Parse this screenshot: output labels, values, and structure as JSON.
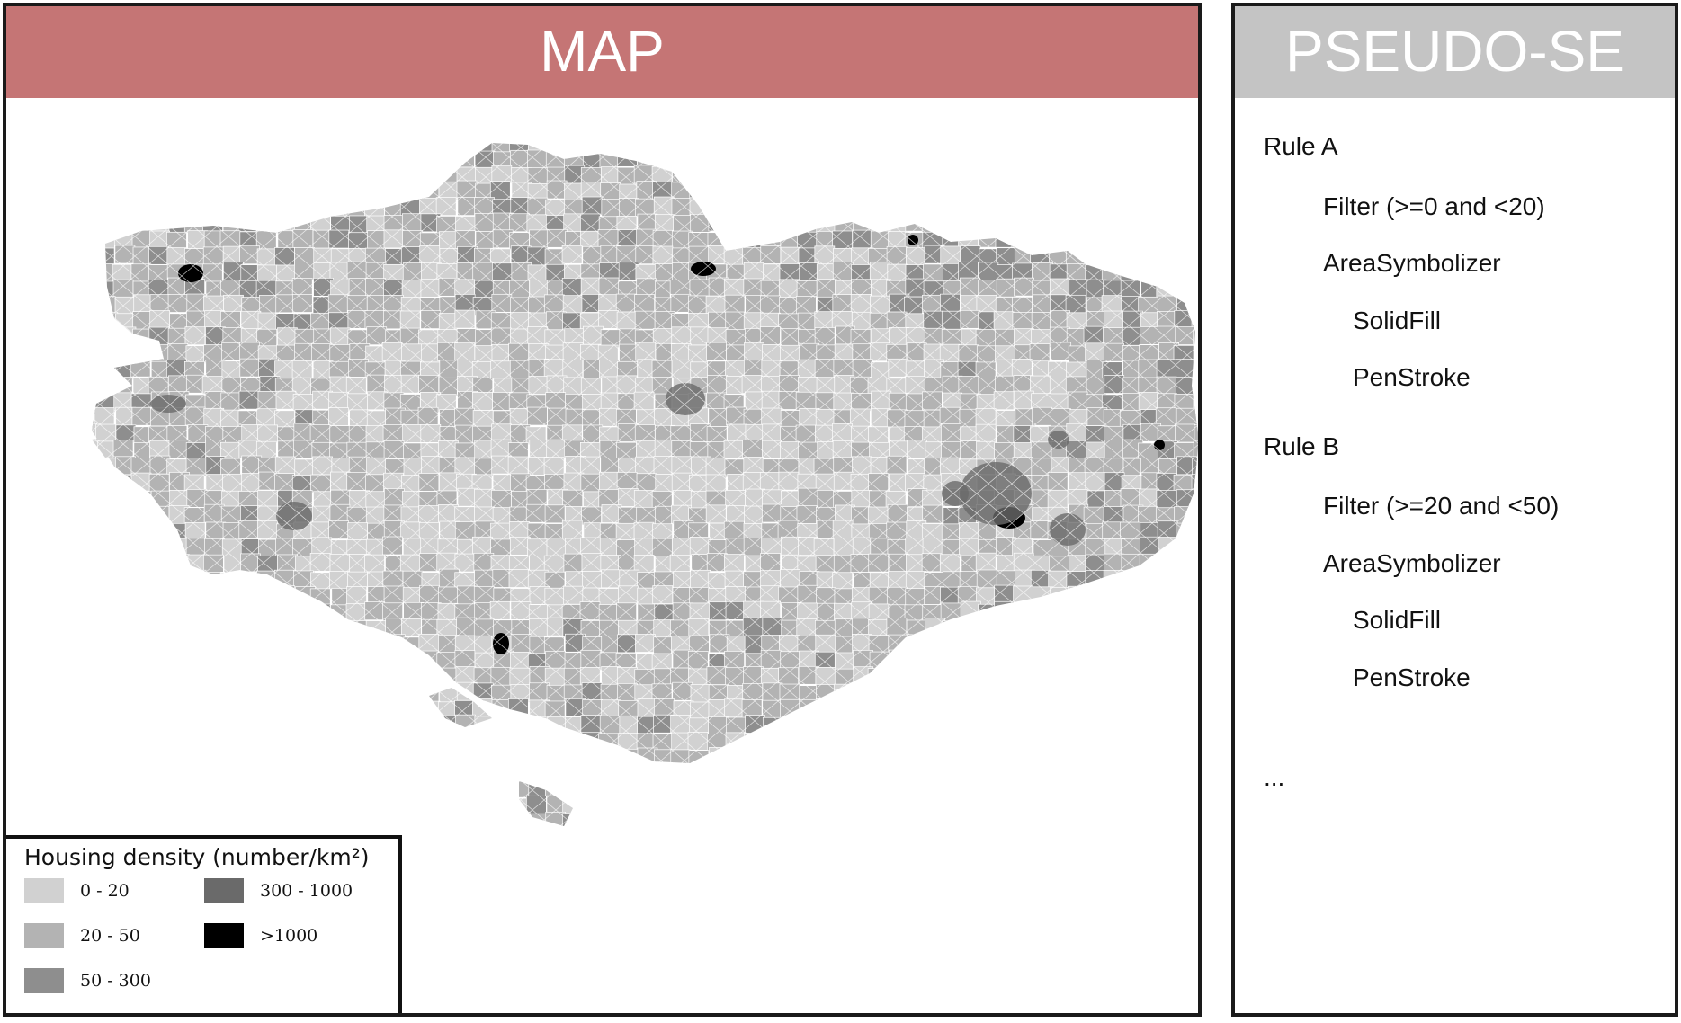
{
  "map_panel": {
    "title": "MAP"
  },
  "legend": {
    "title": "Housing density (number/km²)",
    "items": [
      {
        "label": "0 - 20",
        "color": "#d1d1d1"
      },
      {
        "label": "20 - 50",
        "color": "#b3b3b3"
      },
      {
        "label": "50 - 300",
        "color": "#8e8e8e"
      },
      {
        "label": "300 - 1000",
        "color": "#6a6a6a"
      },
      {
        "label": ">1000",
        "color": "#000000"
      }
    ]
  },
  "se_panel": {
    "title": "PSEUDO-SE",
    "lines": [
      "Rule A",
      "Filter (>=0 and <20)",
      "AreaSymbolizer",
      "SolidFill",
      "PenStroke",
      "Rule B",
      "Filter (>=20 and <50)",
      "AreaSymbolizer",
      "SolidFill",
      "PenStroke",
      "..."
    ]
  },
  "colors": {
    "map_header": "#c57575",
    "se_header": "#c4c4c4",
    "border": "#ffffff"
  }
}
